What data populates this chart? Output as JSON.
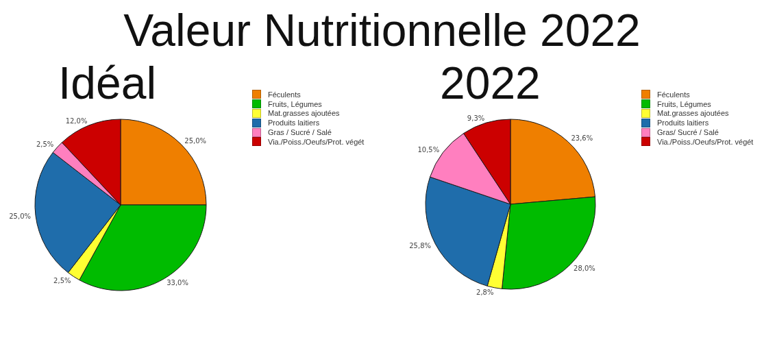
{
  "chart_data": [
    {
      "type": "pie",
      "title": "Valeur Nutritionnelle 2022",
      "subtitle": "Idéal",
      "categories": [
        "Féculents",
        "Fruits, Légumes",
        "Mat.grasses ajoutées",
        "Produits laitiers",
        "Gras / Sucré / Salé",
        "Via./Poiss./Oeufs/Prot. végét"
      ],
      "values": [
        25.0,
        33.0,
        2.5,
        25.0,
        2.5,
        12.0
      ],
      "value_labels": [
        "25,0%",
        "33,0%",
        "2,5%",
        "25,0%",
        "2,5%",
        "12,0%"
      ],
      "colors": [
        "#ef7f00",
        "#00bb00",
        "#ffff33",
        "#1f6dab",
        "#ff7fbf",
        "#cc0000"
      ],
      "legend": "top right"
    },
    {
      "type": "pie",
      "subtitle": "2022",
      "categories": [
        "Féculents",
        "Fruits, Légumes",
        "Mat.grasses ajoutées",
        "Produits laitiers",
        "Gras/ Sucré / Salé",
        "Via./Poiss./Oeufs/Prot. végét"
      ],
      "values": [
        23.6,
        28.0,
        2.8,
        25.8,
        10.5,
        9.3
      ],
      "value_labels": [
        "23,6%",
        "28,0%",
        "2,8%",
        "25,8%",
        "10,5%",
        "9,3%"
      ],
      "colors": [
        "#ef7f00",
        "#00bb00",
        "#ffff33",
        "#1f6dab",
        "#ff7fbf",
        "#cc0000"
      ],
      "legend": "top right"
    }
  ]
}
